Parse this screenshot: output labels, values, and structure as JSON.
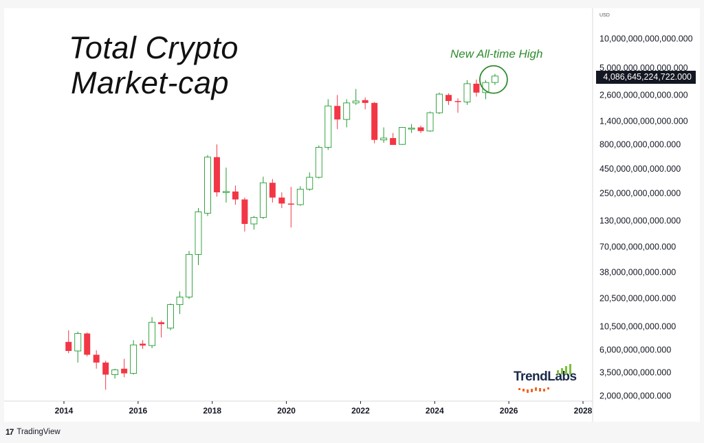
{
  "title_line1": "Total Crypto",
  "title_line2": "Market-cap",
  "annotation": "New All-time High",
  "currency": "USD",
  "current_price_label": "4,086,645,224,722.000",
  "brand": "TrendLabs",
  "platform": "TradingView",
  "platform_mark": "17",
  "colors": {
    "up": "#1f9a2e",
    "down": "#f23645",
    "annotation": "#2e8b2e",
    "axis": "#131722"
  },
  "chart_data": {
    "type": "candlestick",
    "scale": "log",
    "interval": "quarterly",
    "y_ticks": [
      {
        "value": 10000000000000,
        "label": "10,000,000,000,000.000"
      },
      {
        "value": 5000000000000,
        "label": "5,000,000,000,000.000"
      },
      {
        "value": 2600000000000,
        "label": "2,600,000,000,000.000"
      },
      {
        "value": 1400000000000,
        "label": "1,400,000,000,000.000"
      },
      {
        "value": 800000000000,
        "label": "800,000,000,000.000"
      },
      {
        "value": 450000000000,
        "label": "450,000,000,000.000"
      },
      {
        "value": 250000000000,
        "label": "250,000,000,000.000"
      },
      {
        "value": 130000000000,
        "label": "130,000,000,000.000"
      },
      {
        "value": 70000000000,
        "label": "70,000,000,000.000"
      },
      {
        "value": 38000000000,
        "label": "38,000,000,000.000"
      },
      {
        "value": 20500000000,
        "label": "20,500,000,000.000"
      },
      {
        "value": 10500000000,
        "label": "10,500,000,000.000"
      },
      {
        "value": 6000000000,
        "label": "6,000,000,000.000"
      },
      {
        "value": 3500000000,
        "label": "3,500,000,000.000"
      },
      {
        "value": 2000000000,
        "label": "2,000,000,000.000"
      }
    ],
    "x_ticks": [
      "2014",
      "2016",
      "2018",
      "2020",
      "2022",
      "2024",
      "2026",
      "2028"
    ],
    "x_range": [
      2013.6,
      2028.2
    ],
    "current_value": 4086645224722,
    "candles": [
      {
        "t": 2014.0,
        "o": 7200000000.0,
        "h": 9500000000.0,
        "l": 5500000000.0,
        "c": 5800000000.0
      },
      {
        "t": 2014.25,
        "o": 5800000000.0,
        "h": 9200000000.0,
        "l": 4400000000.0,
        "c": 8800000000.0
      },
      {
        "t": 2014.5,
        "o": 8800000000.0,
        "h": 9000000000.0,
        "l": 5100000000.0,
        "c": 5300000000.0
      },
      {
        "t": 2014.75,
        "o": 5300000000.0,
        "h": 5900000000.0,
        "l": 3800000000.0,
        "c": 4400000000.0
      },
      {
        "t": 2015.0,
        "o": 4400000000.0,
        "h": 4600000000.0,
        "l": 2300000000.0,
        "c": 3300000000.0
      },
      {
        "t": 2015.25,
        "o": 3300000000.0,
        "h": 3800000000.0,
        "l": 3000000000.0,
        "c": 3700000000.0
      },
      {
        "t": 2015.5,
        "o": 3800000000.0,
        "h": 4800000000.0,
        "l": 3100000000.0,
        "c": 3400000000.0
      },
      {
        "t": 2015.75,
        "o": 3400000000.0,
        "h": 7500000000.0,
        "l": 3300000000.0,
        "c": 6700000000.0
      },
      {
        "t": 2016.0,
        "o": 6900000000.0,
        "h": 7500000000.0,
        "l": 6100000000.0,
        "c": 6600000000.0
      },
      {
        "t": 2016.25,
        "o": 6600000000.0,
        "h": 13000000000.0,
        "l": 6200000000.0,
        "c": 11500000000.0
      },
      {
        "t": 2016.5,
        "o": 11500000000.0,
        "h": 12000000000.0,
        "l": 8000000000.0,
        "c": 11000000000.0
      },
      {
        "t": 2016.75,
        "o": 10000000000.0,
        "h": 18000000000.0,
        "l": 9500000000.0,
        "c": 17500000000.0
      },
      {
        "t": 2017.0,
        "o": 17500000000.0,
        "h": 24000000000.0,
        "l": 14000000000.0,
        "c": 21000000000.0
      },
      {
        "t": 2017.25,
        "o": 21000000000.0,
        "h": 63000000000.0,
        "l": 20000000000.0,
        "c": 58000000000.0
      },
      {
        "t": 2017.5,
        "o": 58000000000.0,
        "h": 175000000000.0,
        "l": 45000000000.0,
        "c": 160000000000.0
      },
      {
        "t": 2017.75,
        "o": 155000000000.0,
        "h": 620000000000.0,
        "l": 145000000000.0,
        "c": 590000000000.0
      },
      {
        "t": 2018.0,
        "o": 590000000000.0,
        "h": 800000000000.0,
        "l": 230000000000.0,
        "c": 255000000000.0
      },
      {
        "t": 2018.25,
        "o": 255000000000.0,
        "h": 460000000000.0,
        "l": 200000000000.0,
        "c": 260000000000.0
      },
      {
        "t": 2018.5,
        "o": 260000000000.0,
        "h": 300000000000.0,
        "l": 190000000000.0,
        "c": 215000000000.0
      },
      {
        "t": 2018.75,
        "o": 215000000000.0,
        "h": 225000000000.0,
        "l": 100000000000.0,
        "c": 120000000000.0
      },
      {
        "t": 2019.0,
        "o": 120000000000.0,
        "h": 145000000000.0,
        "l": 105000000000.0,
        "c": 140000000000.0
      },
      {
        "t": 2019.25,
        "o": 140000000000.0,
        "h": 370000000000.0,
        "l": 135000000000.0,
        "c": 320000000000.0
      },
      {
        "t": 2019.5,
        "o": 320000000000.0,
        "h": 350000000000.0,
        "l": 200000000000.0,
        "c": 225000000000.0
      },
      {
        "t": 2019.75,
        "o": 225000000000.0,
        "h": 255000000000.0,
        "l": 175000000000.0,
        "c": 195000000000.0
      },
      {
        "t": 2020.0,
        "o": 195000000000.0,
        "h": 290000000000.0,
        "l": 110000000000.0,
        "c": 190000000000.0
      },
      {
        "t": 2020.25,
        "o": 190000000000.0,
        "h": 295000000000.0,
        "l": 185000000000.0,
        "c": 275000000000.0
      },
      {
        "t": 2020.5,
        "o": 275000000000.0,
        "h": 410000000000.0,
        "l": 265000000000.0,
        "c": 365000000000.0
      },
      {
        "t": 2020.75,
        "o": 365000000000.0,
        "h": 780000000000.0,
        "l": 355000000000.0,
        "c": 745000000000.0
      },
      {
        "t": 2021.0,
        "o": 745000000000.0,
        "h": 2350000000000.0,
        "l": 700000000000.0,
        "c": 2000000000000.0
      },
      {
        "t": 2021.25,
        "o": 2000000000000.0,
        "h": 2600000000000.0,
        "l": 1150000000000.0,
        "c": 1450000000000.0
      },
      {
        "t": 2021.5,
        "o": 1450000000000.0,
        "h": 2350000000000.0,
        "l": 1200000000000.0,
        "c": 2150000000000.0
      },
      {
        "t": 2021.75,
        "o": 2150000000000.0,
        "h": 3000000000000.0,
        "l": 2050000000000.0,
        "c": 2250000000000.0
      },
      {
        "t": 2022.0,
        "o": 2300000000000.0,
        "h": 2450000000000.0,
        "l": 1850000000000.0,
        "c": 2150000000000.0
      },
      {
        "t": 2022.25,
        "o": 2150000000000.0,
        "h": 2200000000000.0,
        "l": 820000000000.0,
        "c": 890000000000.0
      },
      {
        "t": 2022.5,
        "o": 890000000000.0,
        "h": 1200000000000.0,
        "l": 830000000000.0,
        "c": 930000000000.0
      },
      {
        "t": 2022.75,
        "o": 930000000000.0,
        "h": 1050000000000.0,
        "l": 790000000000.0,
        "c": 790000000000.0
      },
      {
        "t": 2023.0,
        "o": 800000000000.0,
        "h": 1200000000000.0,
        "l": 790000000000.0,
        "c": 1200000000000.0
      },
      {
        "t": 2023.25,
        "o": 1150000000000.0,
        "h": 1300000000000.0,
        "l": 1050000000000.0,
        "c": 1180000000000.0
      },
      {
        "t": 2023.5,
        "o": 1200000000000.0,
        "h": 1250000000000.0,
        "l": 1050000000000.0,
        "c": 1100000000000.0
      },
      {
        "t": 2023.75,
        "o": 1100000000000.0,
        "h": 1750000000000.0,
        "l": 1080000000000.0,
        "c": 1700000000000.0
      },
      {
        "t": 2024.0,
        "o": 1700000000000.0,
        "h": 2750000000000.0,
        "l": 1650000000000.0,
        "c": 2650000000000.0
      },
      {
        "t": 2024.25,
        "o": 2600000000000.0,
        "h": 2700000000000.0,
        "l": 2050000000000.0,
        "c": 2250000000000.0
      },
      {
        "t": 2024.5,
        "o": 2250000000000.0,
        "h": 2400000000000.0,
        "l": 1700000000000.0,
        "c": 2200000000000.0
      },
      {
        "t": 2024.75,
        "o": 2200000000000.0,
        "h": 3700000000000.0,
        "l": 2050000000000.0,
        "c": 3400000000000.0
      },
      {
        "t": 2025.0,
        "o": 3400000000000.0,
        "h": 3750000000000.0,
        "l": 2500000000000.0,
        "c": 2750000000000.0
      },
      {
        "t": 2025.25,
        "o": 2750000000000.0,
        "h": 3700000000000.0,
        "l": 2350000000000.0,
        "c": 3500000000000.0
      },
      {
        "t": 2025.5,
        "o": 3500000000000.0,
        "h": 4300000000000.0,
        "l": 3300000000000.0,
        "c": 4080000000000.0
      }
    ]
  }
}
